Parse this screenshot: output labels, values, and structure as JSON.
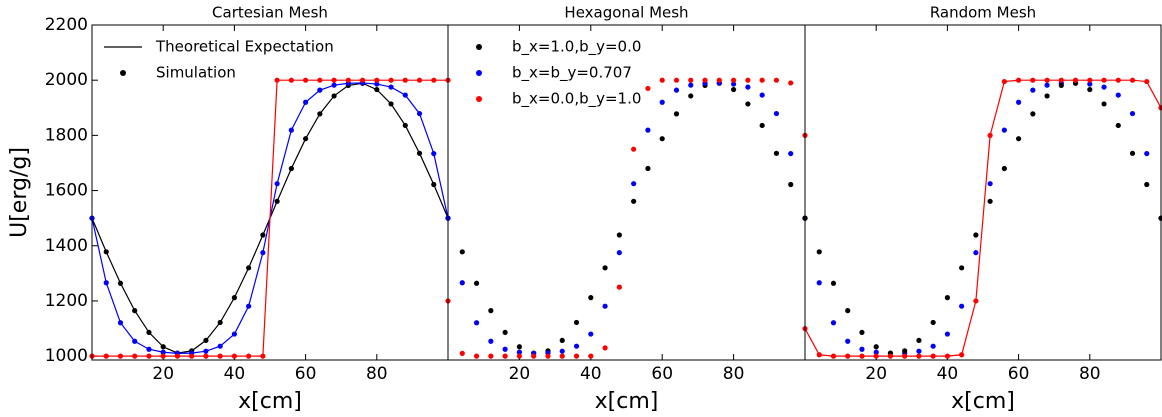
{
  "chart_data": [
    {
      "type": "line",
      "title": "Cartesian Mesh",
      "xlabel": "x[cm]",
      "ylabel": "U[erg/g]",
      "xlim": [
        0,
        100
      ],
      "ylim": [
        986,
        2200
      ],
      "xticks": [
        20,
        40,
        60,
        80
      ],
      "yticks": [
        1000,
        1200,
        1400,
        1600,
        1800,
        2000,
        2200
      ],
      "legend": "upper left",
      "x": [
        0,
        4,
        8,
        12,
        16,
        20,
        24,
        28,
        32,
        36,
        40,
        44,
        48,
        52,
        56,
        60,
        64,
        68,
        72,
        76,
        80,
        84,
        88,
        92,
        96,
        100
      ],
      "series": [
        {
          "name": "Theoretical Expectation",
          "color": "#000000",
          "style": "line",
          "values": [
            1500,
            1378,
            1264,
            1165,
            1086,
            1034,
            1011,
            1019,
            1057,
            1122,
            1212,
            1320,
            1439,
            1561,
            1680,
            1788,
            1878,
            1943,
            1981,
            1989,
            1966,
            1914,
            1836,
            1735,
            1622,
            1500
          ]
        },
        {
          "name": "Simulation",
          "color": "#000000",
          "style": "dots",
          "values": [
            1500,
            1378,
            1264,
            1165,
            1086,
            1034,
            1011,
            1019,
            1057,
            1122,
            1212,
            1320,
            1439,
            1561,
            1680,
            1788,
            1878,
            1943,
            1981,
            1989,
            1966,
            1914,
            1836,
            1735,
            1622,
            1500
          ]
        },
        {
          "color": "#0000ff",
          "style": "line+dots",
          "values": [
            1500,
            1266,
            1121,
            1054,
            1025,
            1014,
            1010,
            1011,
            1018,
            1036,
            1080,
            1181,
            1375,
            1625,
            1819,
            1920,
            1964,
            1982,
            1989,
            1990,
            1986,
            1975,
            1946,
            1879,
            1734,
            1500
          ]
        },
        {
          "color": "#ff0000",
          "style": "line+dots",
          "values": [
            1000,
            1000,
            1000,
            1000,
            1000,
            1000,
            1000,
            1000,
            1000,
            1000,
            1000,
            1000,
            1000,
            2000,
            2000,
            2000,
            2000,
            2000,
            2000,
            2000,
            2000,
            2000,
            2000,
            2000,
            2000,
            2000
          ]
        }
      ]
    },
    {
      "type": "line",
      "title": "Hexagonal Mesh",
      "xlabel": "x[cm]",
      "xlim": [
        0,
        100
      ],
      "ylim": [
        986,
        2200
      ],
      "xticks": [
        20,
        40,
        60,
        80
      ],
      "legend": "upper left",
      "x": [
        0,
        4,
        8,
        12,
        16,
        20,
        24,
        28,
        32,
        36,
        40,
        44,
        48,
        52,
        56,
        60,
        64,
        68,
        72,
        76,
        80,
        84,
        88,
        92,
        96,
        100
      ],
      "series": [
        {
          "name": "b_x=1.0,b_y=0.0",
          "color": "#000000",
          "style": "dots",
          "values": [
            1500,
            1378,
            1264,
            1165,
            1086,
            1034,
            1011,
            1019,
            1057,
            1122,
            1212,
            1320,
            1439,
            1561,
            1680,
            1788,
            1878,
            1943,
            1981,
            1989,
            1966,
            1914,
            1836,
            1735,
            1622,
            1500
          ]
        },
        {
          "name": "b_x=b_y=0.707",
          "color": "#0000ff",
          "style": "dots",
          "values": [
            1500,
            1266,
            1121,
            1054,
            1025,
            1014,
            1010,
            1011,
            1018,
            1036,
            1080,
            1181,
            1375,
            1625,
            1819,
            1920,
            1964,
            1982,
            1989,
            1990,
            1986,
            1975,
            1946,
            1879,
            1734,
            1500
          ]
        },
        {
          "name": "b_x=0.0,b_y=1.0",
          "color": "#ff0000",
          "style": "dots",
          "values": [
            1200,
            1010,
            1000,
            1000,
            1000,
            1000,
            1000,
            1000,
            1000,
            1000,
            1000,
            1030,
            1250,
            1750,
            1970,
            2000,
            2000,
            2000,
            2000,
            2000,
            2000,
            2000,
            2000,
            2000,
            1990,
            1800
          ]
        }
      ]
    },
    {
      "type": "line",
      "title": "Random Mesh",
      "xlabel": "x[cm]",
      "xlim": [
        0,
        100
      ],
      "ylim": [
        986,
        2200
      ],
      "xticks": [
        20,
        40,
        60,
        80
      ],
      "x": [
        0,
        4,
        8,
        12,
        16,
        20,
        24,
        28,
        32,
        36,
        40,
        44,
        48,
        52,
        56,
        60,
        64,
        68,
        72,
        76,
        80,
        84,
        88,
        92,
        96,
        100
      ],
      "series": [
        {
          "color": "#0000ff",
          "style": "dots",
          "values": [
            1500,
            1266,
            1121,
            1054,
            1025,
            1014,
            1010,
            1011,
            1018,
            1036,
            1080,
            1181,
            1375,
            1625,
            1819,
            1920,
            1964,
            1982,
            1989,
            1990,
            1986,
            1975,
            1946,
            1879,
            1734,
            1500
          ]
        },
        {
          "color": "#000000",
          "style": "dots",
          "values": [
            1500,
            1378,
            1264,
            1165,
            1086,
            1034,
            1011,
            1019,
            1057,
            1122,
            1212,
            1320,
            1439,
            1561,
            1680,
            1788,
            1878,
            1943,
            1981,
            1989,
            1966,
            1914,
            1836,
            1735,
            1622,
            1500
          ]
        },
        {
          "color": "#ff0000",
          "style": "line+dots",
          "values": [
            1100,
            1005,
            1000,
            1000,
            1000,
            1000,
            1000,
            1000,
            1000,
            1000,
            1000,
            1005,
            1200,
            1800,
            1995,
            2000,
            2000,
            2000,
            2000,
            2000,
            2000,
            2000,
            2000,
            2000,
            1995,
            1900
          ]
        }
      ]
    }
  ]
}
